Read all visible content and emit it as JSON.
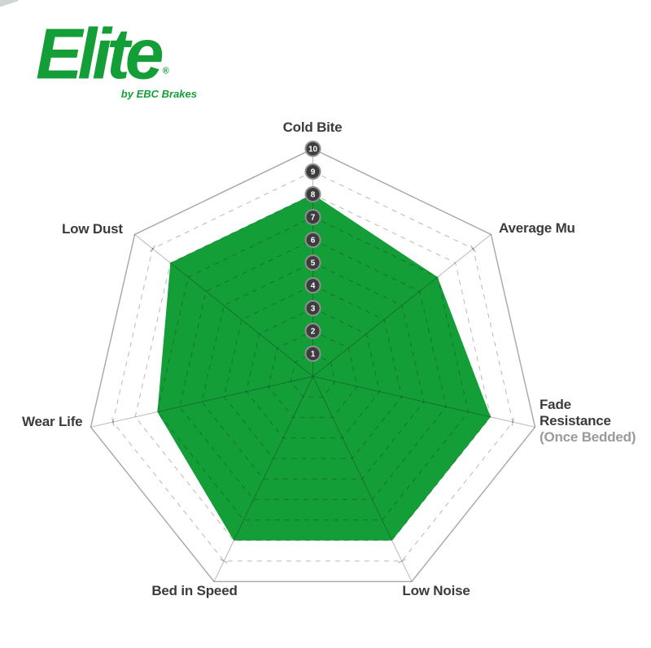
{
  "logo": {
    "brand": "Elite",
    "registered": "®",
    "tagline": "by EBC Brakes"
  },
  "chart_data": {
    "type": "radar",
    "categories": [
      "Cold Bite",
      "Average Mu",
      "Fade Resistance (Once Bedded)",
      "Low Noise",
      "Bed in Speed",
      "Wear Life",
      "Low Dust"
    ],
    "values": [
      8,
      7,
      8,
      8,
      8,
      7,
      8
    ],
    "scale": {
      "min": 1,
      "max": 10,
      "step": 1
    },
    "scale_ticks": [
      "10",
      "9",
      "8",
      "7",
      "6",
      "5",
      "4",
      "3",
      "2",
      "1"
    ],
    "grid": {
      "inner_rings": "dashed at 1-9",
      "outer_ring": "solid at 10",
      "spokes": "solid center to rim"
    },
    "legend_position": "none",
    "title": "",
    "colors": {
      "fill": "#149e38",
      "grid_line": "rgba(20,20,20,0.30)",
      "outer_line": "rgba(20,20,20,0.38)",
      "tick_circle_fill": "#3d3d3f",
      "tick_circle_stroke": "#8f8f8f",
      "tick_text": "#ffffff",
      "label": "#3b3b3d",
      "sublabel": "#9a9a9a"
    }
  },
  "labels": {
    "cold_bite": "Cold Bite",
    "average_mu": "Average Mu",
    "fade_line1": "Fade",
    "fade_line2": "Resistance",
    "fade_line3": "(Once Bedded)",
    "low_noise": "Low Noise",
    "bed_in_speed": "Bed in Speed",
    "wear_life": "Wear Life",
    "low_dust": "Low Dust"
  }
}
